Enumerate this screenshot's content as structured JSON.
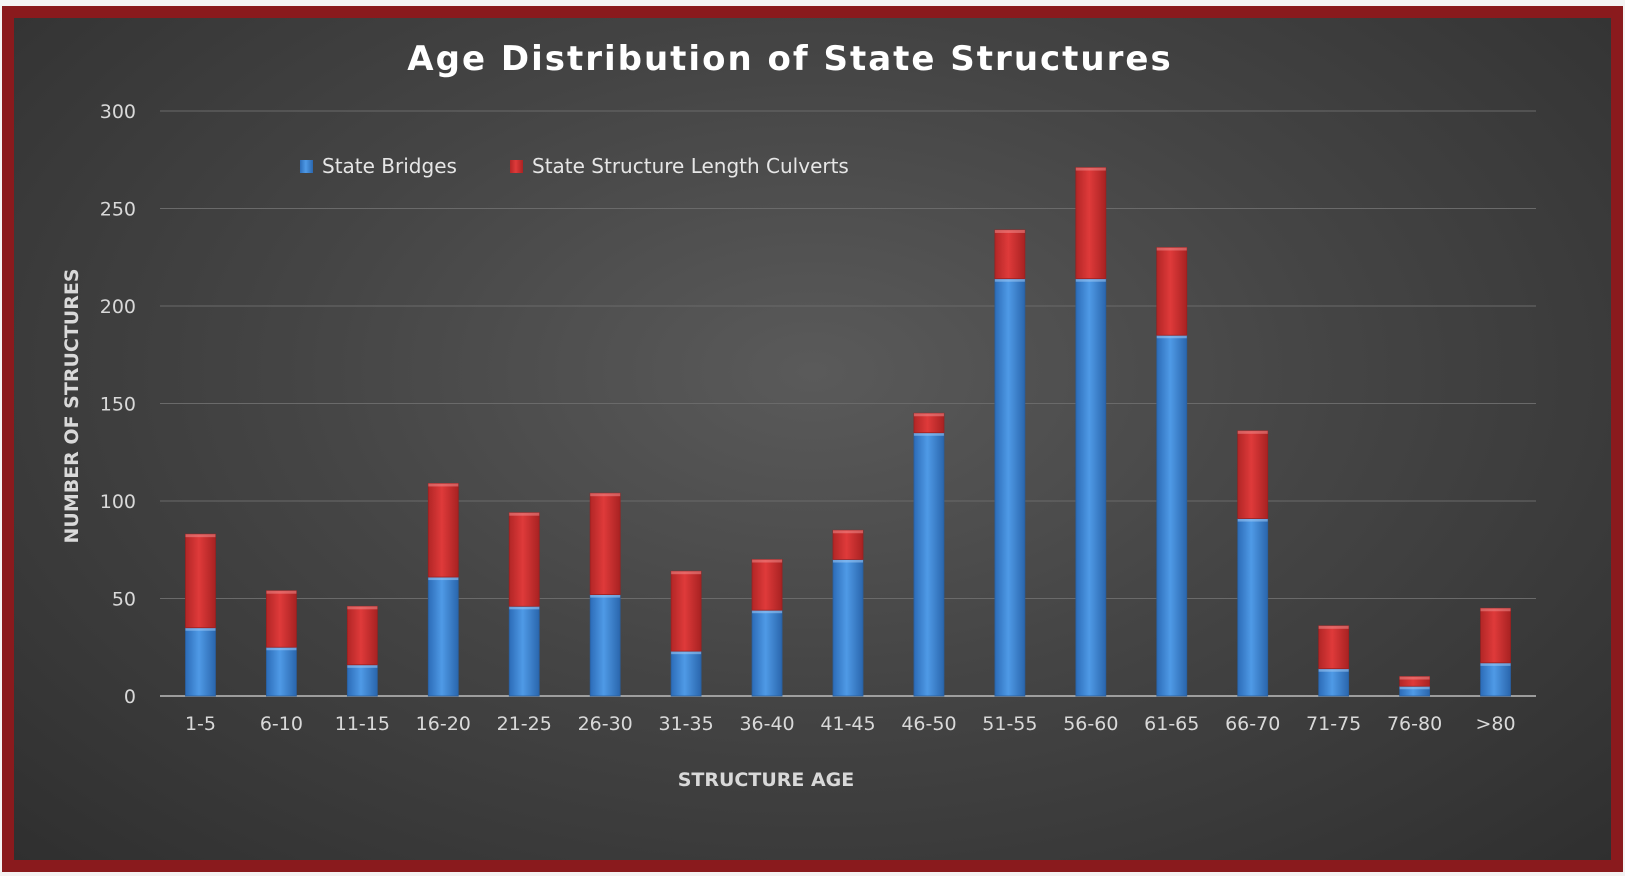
{
  "chart_data": {
    "type": "bar",
    "stacked": true,
    "title": "Age Distribution of State Structures",
    "xlabel": "STRUCTURE AGE",
    "ylabel": "NUMBER OF STRUCTURES",
    "ylim": [
      0,
      300
    ],
    "yticks": [
      "0",
      "50",
      "100",
      "150",
      "200",
      "250",
      "300"
    ],
    "grid": true,
    "legend_position": "top-left",
    "categories": [
      "1-5",
      "6-10",
      "11-15",
      "16-20",
      "21-25",
      "26-30",
      "31-35",
      "36-40",
      "41-45",
      "46-50",
      "51-55",
      "56-60",
      "61-65",
      "66-70",
      "71-75",
      "76-80",
      ">80"
    ],
    "series": [
      {
        "name": "State Bridges",
        "color": "#3d85d6",
        "values": [
          35,
          25,
          16,
          61,
          46,
          52,
          23,
          44,
          70,
          135,
          214,
          214,
          185,
          91,
          14,
          5,
          17
        ]
      },
      {
        "name": "State Structure Length Culverts",
        "color": "#d03030",
        "values": [
          48,
          29,
          30,
          48,
          48,
          52,
          41,
          26,
          15,
          10,
          25,
          57,
          45,
          45,
          22,
          5,
          28
        ]
      }
    ]
  }
}
